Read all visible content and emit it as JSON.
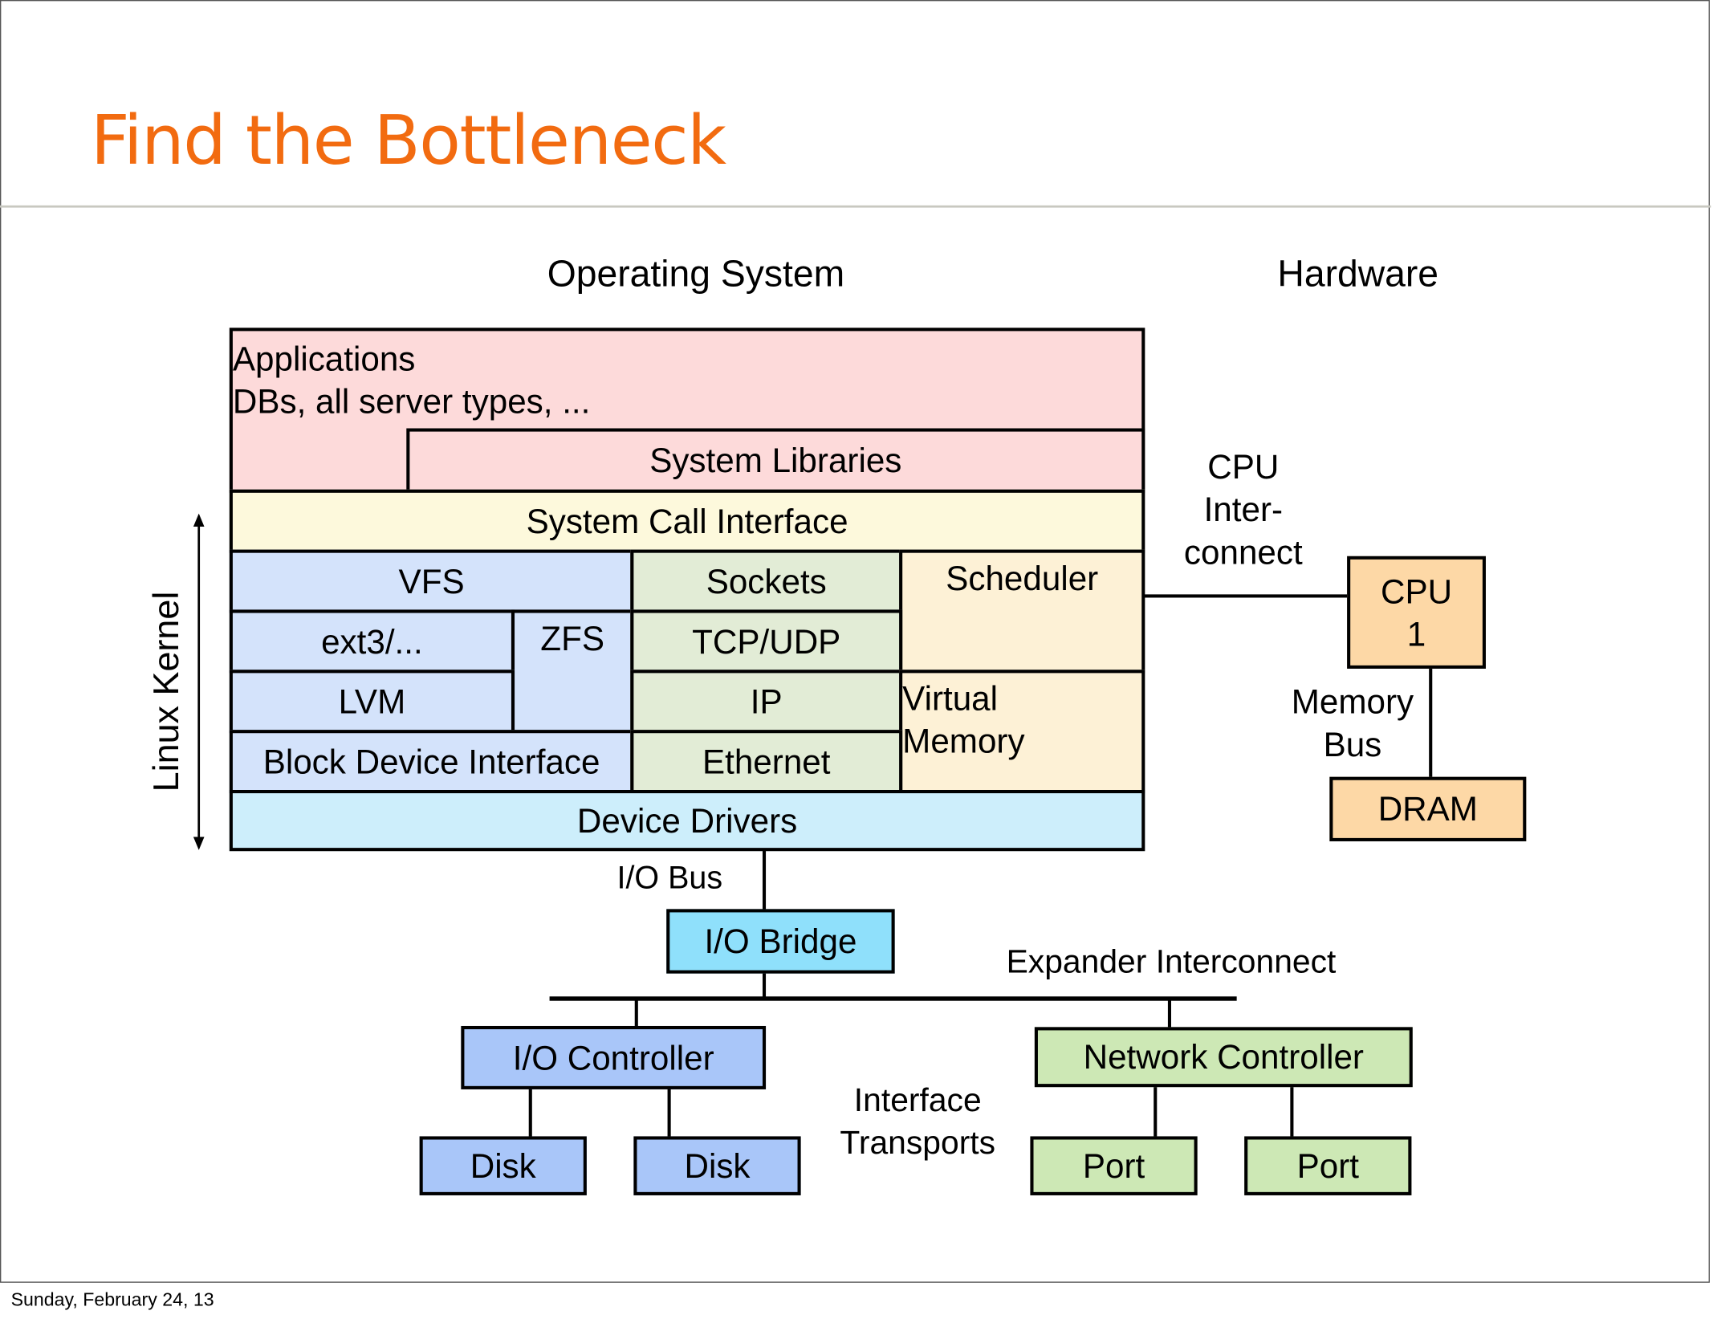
{
  "slide": {
    "title": "Find the Bottleneck",
    "footer": "Sunday, February 24, 13"
  },
  "headings": {
    "os": "Operating System",
    "hardware": "Hardware"
  },
  "side_label": "Linux Kernel",
  "os_stack": {
    "applications": "Applications",
    "applications_sub": "DBs, all server types, ...",
    "system_libraries": "System Libraries",
    "system_call_interface": "System Call Interface",
    "vfs": "VFS",
    "sockets": "Sockets",
    "scheduler": "Scheduler",
    "ext3": "ext3/...",
    "zfs": "ZFS",
    "tcp_udp": "TCP/UDP",
    "lvm": "LVM",
    "ip": "IP",
    "virtual_memory": "Virtual",
    "virtual_memory_2": "Memory",
    "block_device_interface": "Block Device Interface",
    "ethernet": "Ethernet",
    "device_drivers": "Device Drivers"
  },
  "hardware": {
    "cpu": "CPU",
    "cpu_num": "1",
    "dram": "DRAM",
    "io_bridge": "I/O Bridge",
    "io_controller": "I/O Controller",
    "disk": "Disk",
    "network_controller": "Network Controller",
    "port": "Port"
  },
  "connections": {
    "cpu_interconnect": [
      "CPU",
      "Inter-",
      "connect"
    ],
    "memory_bus": [
      "Memory",
      "Bus"
    ],
    "io_bus": "I/O Bus",
    "expander": "Expander Interconnect",
    "interface_transports": [
      "Interface",
      "Transports"
    ]
  },
  "colors": {
    "title": "#f26b10",
    "apps": "#fddada",
    "syscall": "#fdf9dc",
    "fs": "#d4e3fb",
    "net": "#e2ecd6",
    "sched": "#fdf1d6",
    "drivers": "#cdeefb",
    "bridge": "#8fe0fb",
    "storage": "#a9c6f9",
    "network_hw": "#cde8b5",
    "cpu": "#fdd8a6"
  }
}
